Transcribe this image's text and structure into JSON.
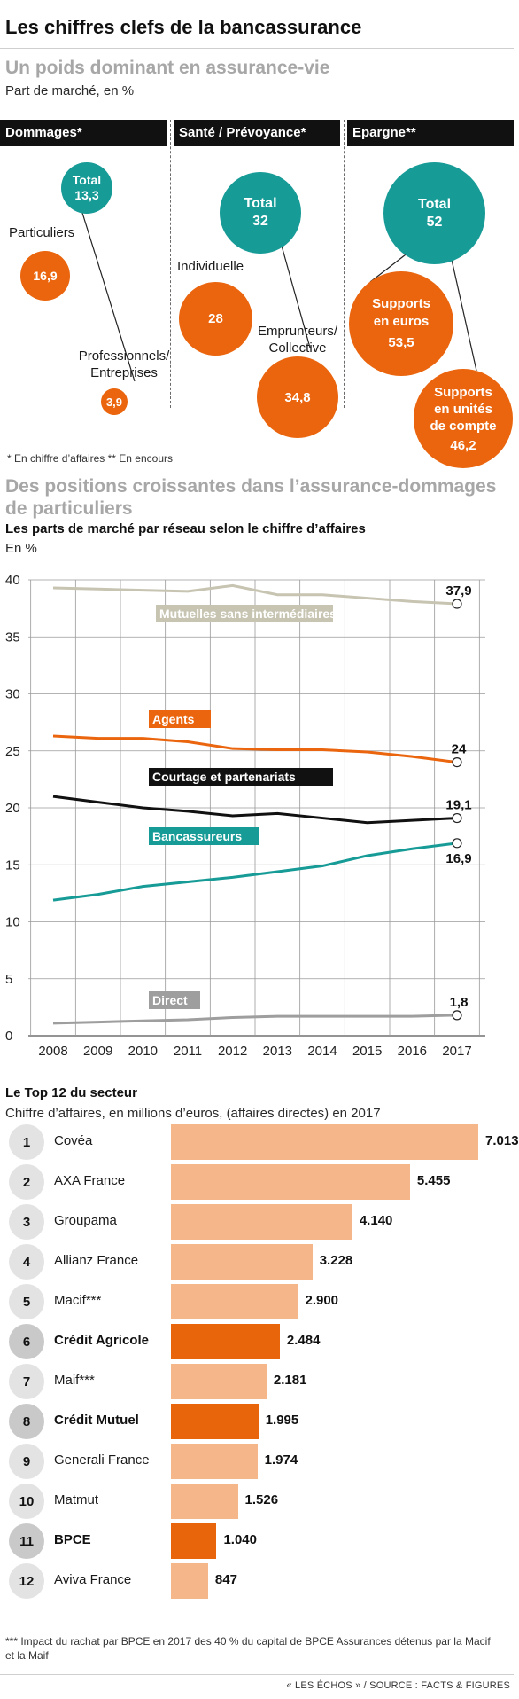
{
  "title": "Les chiffres clefs de la bancassurance",
  "section1": {
    "title": "Un poids dominant en assurance-vie",
    "subtitle": "Part de marché, en %",
    "panels": [
      {
        "header": "Dommages*",
        "total_label": "Total",
        "total_value": "13,3",
        "items": [
          {
            "label": "Particuliers",
            "value": "16,9"
          },
          {
            "label": "Professionnels/\nEntreprises",
            "value": "3,9"
          }
        ]
      },
      {
        "header": "Santé / Prévoyance*",
        "total_label": "Total",
        "total_value": "32",
        "items": [
          {
            "label": "Individuelle",
            "value": "28"
          },
          {
            "label": "Emprunteurs/\nCollective",
            "value": "34,8"
          }
        ]
      },
      {
        "header": "Epargne**",
        "total_label": "Total",
        "total_value": "52",
        "items": [
          {
            "label": "Supports\nen euros",
            "value": "53,5"
          },
          {
            "label": "Supports\nen unités\nde compte",
            "value": "46,2"
          }
        ]
      }
    ],
    "footnote": "* En chiffre d’affaires   ** En encours",
    "colors": {
      "total": "#179b97",
      "segment": "#ea650d"
    }
  },
  "section2": {
    "title": "Des positions croissantes dans l’assurance-dommages de particuliers",
    "subtitle_bold": "Les parts de marché par réseau selon le chiffre d’affaires",
    "unit": "En %"
  },
  "section3": {
    "title": "Le Top 12 du secteur",
    "subtitle": "Chiffre d’affaires, en millions d’euros, (affaires directes) en 2017",
    "footnote": "*** Impact du rachat par BPCE en 2017 des 40 % du capital de BPCE Assurances détenus par la Macif et la Maif"
  },
  "source": "« LES ÉCHOS » / SOURCE : FACTS & FIGURES",
  "chart_data": [
    {
      "type": "line",
      "x": [
        2008,
        2009,
        2010,
        2011,
        2012,
        2013,
        2014,
        2015,
        2016,
        2017
      ],
      "ylim": [
        0,
        40
      ],
      "yticks": [
        0,
        5,
        10,
        15,
        20,
        25,
        30,
        35,
        40
      ],
      "grid": true,
      "series": [
        {
          "name": "Mutuelles sans intermédiaires",
          "color": "#c7c4b2",
          "label_color": "#c7c4b2",
          "label_text_color": "#ffffff",
          "end_label": "37,9",
          "values": [
            39.3,
            39.2,
            39.1,
            39.0,
            39.5,
            38.7,
            38.7,
            38.4,
            38.1,
            37.9
          ]
        },
        {
          "name": "Agents",
          "color": "#ea650d",
          "label_color": "#ea650d",
          "label_text_color": "#ffffff",
          "end_label": "24",
          "values": [
            26.3,
            26.1,
            26.1,
            25.8,
            25.2,
            25.1,
            25.1,
            24.9,
            24.5,
            24.0
          ]
        },
        {
          "name": "Courtage et partenariats",
          "color": "#111111",
          "label_color": "#111111",
          "label_text_color": "#ffffff",
          "end_label": "19,1",
          "values": [
            21.0,
            20.5,
            20.0,
            19.7,
            19.3,
            19.5,
            19.1,
            18.7,
            18.9,
            19.1
          ]
        },
        {
          "name": "Bancassureurs",
          "color": "#179b97",
          "label_color": "#179b97",
          "label_text_color": "#ffffff",
          "end_label": "16,9",
          "values": [
            11.9,
            12.4,
            13.1,
            13.5,
            13.9,
            14.4,
            14.9,
            15.8,
            16.4,
            16.9
          ]
        },
        {
          "name": "Direct",
          "color": "#9e9e9e",
          "label_color": "#9e9e9e",
          "label_text_color": "#ffffff",
          "end_label": "1,8",
          "values": [
            1.1,
            1.2,
            1.3,
            1.4,
            1.6,
            1.7,
            1.7,
            1.7,
            1.7,
            1.8
          ]
        }
      ]
    },
    {
      "type": "bar",
      "orientation": "horizontal",
      "xlim": [
        0,
        7013
      ],
      "colors": {
        "default": "#f5b68a",
        "highlight": "#e8650b"
      },
      "rows": [
        {
          "rank": "1",
          "name": "Covéa",
          "value": 7013,
          "label": "7.013",
          "highlight": false
        },
        {
          "rank": "2",
          "name": "AXA France",
          "value": 5455,
          "label": "5.455",
          "highlight": false
        },
        {
          "rank": "3",
          "name": "Groupama",
          "value": 4140,
          "label": "4.140",
          "highlight": false
        },
        {
          "rank": "4",
          "name": "Allianz France",
          "value": 3228,
          "label": "3.228",
          "highlight": false
        },
        {
          "rank": "5",
          "name": "Macif***",
          "value": 2900,
          "label": "2.900",
          "highlight": false
        },
        {
          "rank": "6",
          "name": "Crédit Agricole",
          "value": 2484,
          "label": "2.484",
          "highlight": true
        },
        {
          "rank": "7",
          "name": "Maif***",
          "value": 2181,
          "label": "2.181",
          "highlight": false
        },
        {
          "rank": "8",
          "name": "Crédit Mutuel",
          "value": 1995,
          "label": "1.995",
          "highlight": true
        },
        {
          "rank": "9",
          "name": "Generali France",
          "value": 1974,
          "label": "1.974",
          "highlight": false
        },
        {
          "rank": "10",
          "name": "Matmut",
          "value": 1526,
          "label": "1.526",
          "highlight": false
        },
        {
          "rank": "11",
          "name": "BPCE",
          "value": 1040,
          "label": "1.040",
          "highlight": true
        },
        {
          "rank": "12",
          "name": "Aviva France",
          "value": 847,
          "label": "847",
          "highlight": false
        }
      ]
    }
  ]
}
